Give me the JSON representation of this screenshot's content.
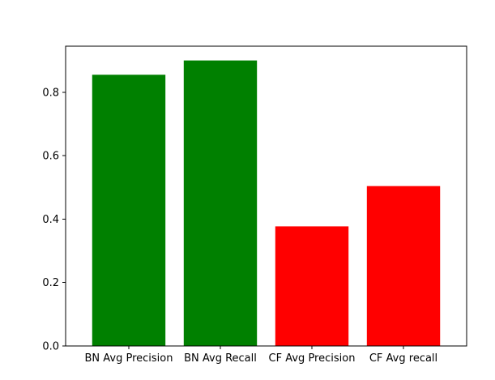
{
  "chart_data": {
    "type": "bar",
    "title": "",
    "xlabel": "",
    "ylabel": "",
    "categories": [
      "BN Avg Precision",
      "BN Avg Recall",
      "CF Avg Precision",
      "CF Avg recall"
    ],
    "values": [
      0.855,
      0.9,
      0.377,
      0.504
    ],
    "bar_colors": [
      "#008000",
      "#008000",
      "#ff0000",
      "#ff0000"
    ],
    "ylim": [
      0,
      0.945
    ],
    "yticks": [
      0.0,
      0.2,
      0.4,
      0.6,
      0.8
    ],
    "ytick_labels": [
      "0.0",
      "0.2",
      "0.4",
      "0.6",
      "0.8"
    ],
    "grid": false,
    "legend": "none"
  }
}
